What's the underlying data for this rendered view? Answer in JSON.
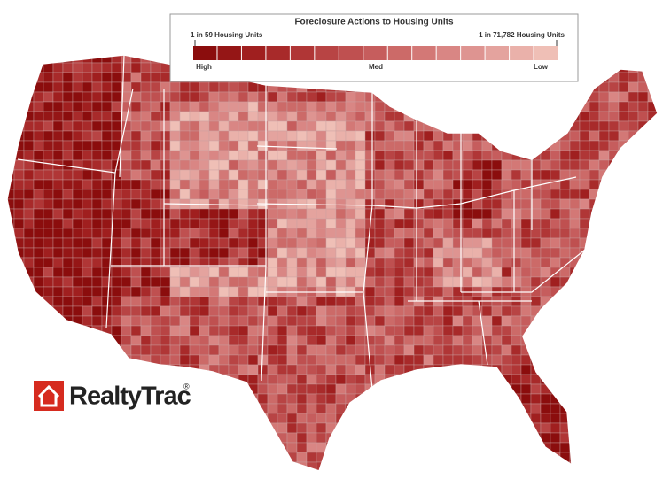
{
  "legend": {
    "title": "Foreclosure Actions to Housing Units",
    "high_label": "1 in 59 Housing Units",
    "low_label": "1 in 71,782 Housing Units",
    "scale_labels": [
      "High",
      "Med",
      "Low"
    ],
    "colors": [
      "#8b0d0d",
      "#951616",
      "#a01f1f",
      "#a82a2a",
      "#b03636",
      "#b84444",
      "#bf5050",
      "#c65d5d",
      "#cc6a68",
      "#d37876",
      "#d98684",
      "#de9491",
      "#e4a39e",
      "#eab1aa",
      "#efbfb6"
    ]
  },
  "logo": {
    "name": "RealtyTrac",
    "mark": "®"
  }
}
